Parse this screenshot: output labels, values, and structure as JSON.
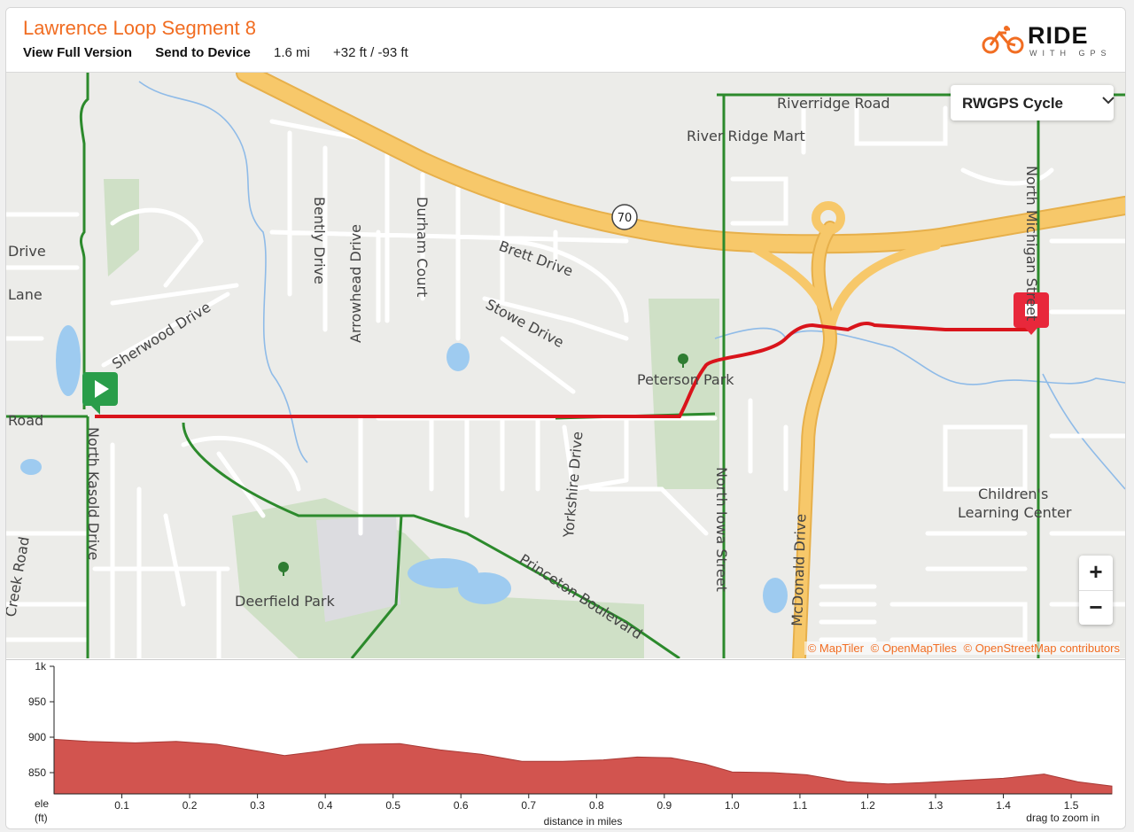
{
  "header": {
    "title": "Lawrence Loop Segment 8",
    "view_full_label": "View Full Version",
    "send_to_device_label": "Send to Device",
    "distance": "1.6 mi",
    "elevation_gain_loss": "+32 ft / -93 ft",
    "logo_main": "RIDE",
    "logo_sub": "WITH GPS",
    "logo_color": "#f16d22"
  },
  "map": {
    "layer_select": {
      "value": "RWGPS Cycle",
      "icon": "chevron-down-icon"
    },
    "zoom_in_label": "+",
    "zoom_out_label": "−",
    "attribution": {
      "a": "© MapTiler",
      "b": "© OpenMapTiles",
      "c": "© OpenStreetMap contributors"
    },
    "start_icon": "play-icon",
    "end_icon": "stop-icon",
    "route_color": "#d9141b",
    "labels": {
      "riverridge": "Riverridge Road",
      "river_ridge_mart": "River Ridge Mart",
      "north_michigan": "North Michigan Street",
      "route70": "70",
      "brett": "Brett Drive",
      "stowe": "Stowe Drive",
      "durham": "Durham Court",
      "arrowhead": "Arrowhead Drive",
      "bently": "Bently Drive",
      "sherwood": "Sherwood Drive",
      "drive_left": "Drive",
      "lane_left": "Lane",
      "road_left": "Road",
      "peterson": "Peterson Park",
      "north_kasold": "North Kasold Drive",
      "yorkshire": "Yorkshire Drive",
      "north_iowa": "North Iowa Street",
      "mcdonald": "McDonald Drive",
      "princeton": "Princeton Boulevard",
      "deerfield": "Deerfield Park",
      "childrens1": "Children's",
      "childrens2": "Learning Center",
      "creek": "Creek Road"
    }
  },
  "elevation": {
    "y_unit_top": "ele",
    "y_unit_bottom": "(ft)",
    "x_label": "distance in miles",
    "hint": "drag to zoom in",
    "fill_color": "#d2544f",
    "y_ticks": [
      "1k",
      "950",
      "900",
      "850"
    ],
    "x_ticks": [
      "0.1",
      "0.2",
      "0.3",
      "0.4",
      "0.5",
      "0.6",
      "0.7",
      "0.8",
      "0.9",
      "1.0",
      "1.1",
      "1.2",
      "1.3",
      "1.4",
      "1.5"
    ]
  },
  "chart_data": {
    "type": "area",
    "title": "",
    "xlabel": "distance in miles",
    "ylabel": "ele (ft)",
    "xlim": [
      0,
      1.56
    ],
    "ylim": [
      820,
      1000
    ],
    "grid": false,
    "x": [
      0,
      0.05,
      0.12,
      0.18,
      0.24,
      0.29,
      0.34,
      0.39,
      0.45,
      0.51,
      0.57,
      0.63,
      0.69,
      0.75,
      0.81,
      0.86,
      0.91,
      0.96,
      1.0,
      1.06,
      1.11,
      1.17,
      1.23,
      1.28,
      1.34,
      1.4,
      1.46,
      1.51,
      1.56
    ],
    "series": [
      {
        "values": [
          897,
          894,
          892,
          894,
          890,
          882,
          874,
          880,
          890,
          891,
          882,
          876,
          866,
          866,
          868,
          872,
          871,
          862,
          851,
          850,
          847,
          837,
          834,
          836,
          839,
          842,
          848,
          837,
          831
        ]
      }
    ]
  }
}
